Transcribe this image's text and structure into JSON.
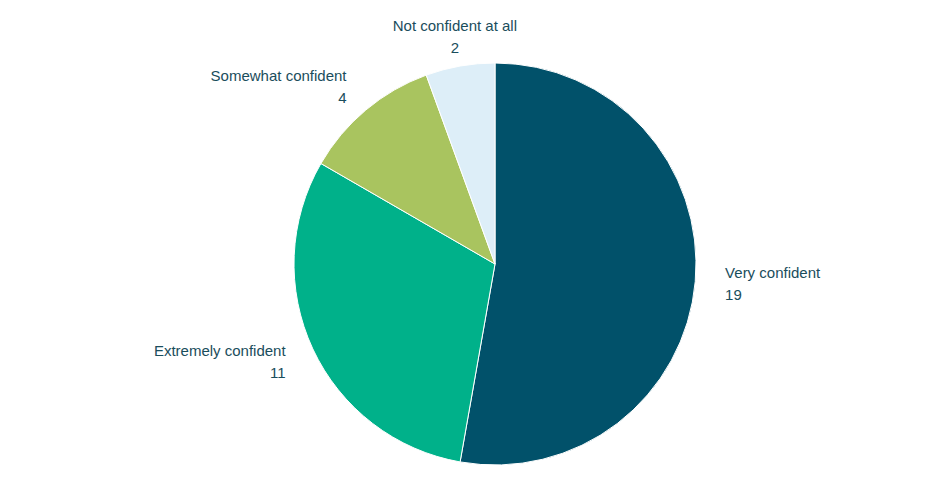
{
  "chart_data": {
    "type": "pie",
    "categories": [
      "Very confident",
      "Extremely confident",
      "Somewhat confident",
      "Not confident at all"
    ],
    "values": [
      19,
      11,
      4,
      2
    ],
    "colors": [
      "#01516a",
      "#00b18a",
      "#a9c45f",
      "#ddeef8"
    ],
    "data_labels": true
  }
}
